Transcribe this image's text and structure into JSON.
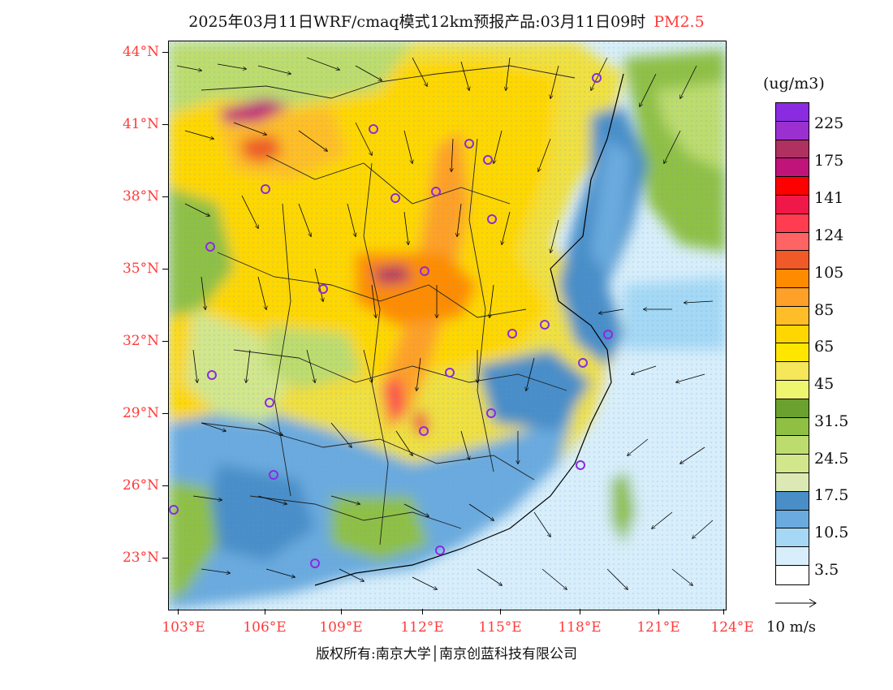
{
  "header": {
    "title": "2025年03月11日WRF/cmaq模式12km预报产品:03月11日09时",
    "species": "PM2.5"
  },
  "axes": {
    "latitude_labels": [
      "44°N",
      "41°N",
      "38°N",
      "35°N",
      "32°N",
      "29°N",
      "26°N",
      "23°N"
    ],
    "longitude_labels": [
      "103°E",
      "106°E",
      "109°E",
      "112°E",
      "115°E",
      "118°E",
      "121°E",
      "124°E"
    ]
  },
  "legend": {
    "unit": "(ug/m3)",
    "labels": [
      "225",
      "175",
      "141",
      "124",
      "105",
      "85",
      "65",
      "45",
      "31.5",
      "24.5",
      "17.5",
      "10.5",
      "3.5"
    ],
    "colors": [
      "#8a2be2",
      "#9b30d0",
      "#b03060",
      "#c0147a",
      "#ff0000",
      "#f01848",
      "#ff3c50",
      "#ff6464",
      "#f05a28",
      "#ff8c00",
      "#ffa028",
      "#ffbe28",
      "#ffd700",
      "#ffe600",
      "#f5e65a",
      "#eef56e",
      "#6aa12f",
      "#8fc044",
      "#bddc6e",
      "#d2e68c",
      "#dde9b4",
      "#4a8ec8",
      "#6aaade",
      "#a4d8f4",
      "#d8eefa",
      "#ffffff"
    ],
    "wind_vector_label": "10 m/s"
  },
  "footer": {
    "copyright": "版权所有:南京大学│南京创蓝科技有限公司"
  }
}
